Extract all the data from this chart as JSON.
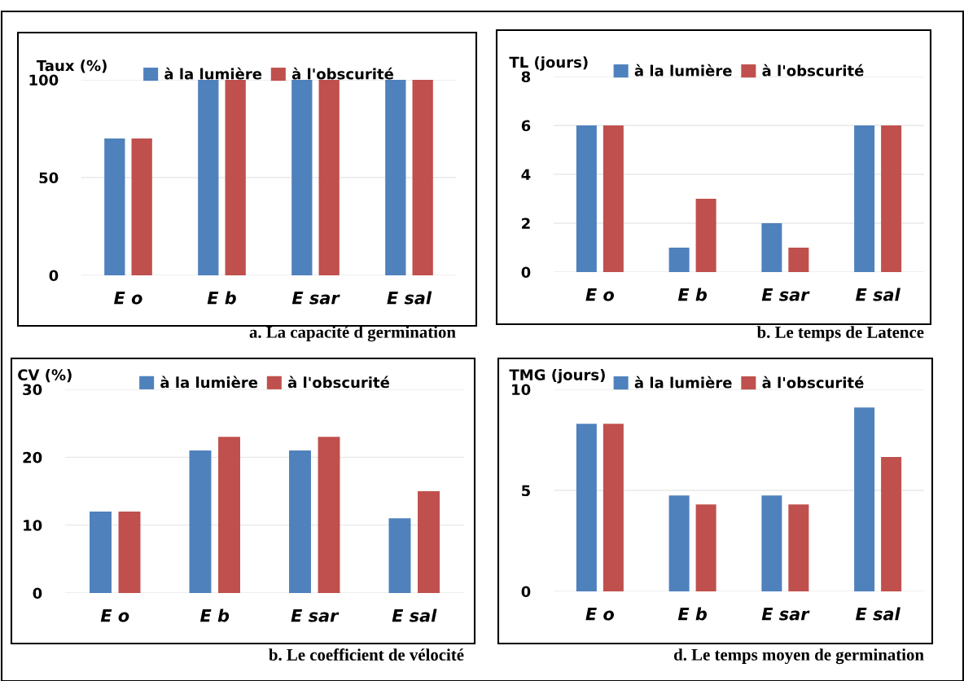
{
  "chart_data": [
    {
      "type": "bar",
      "title": "a. La capacité d germination",
      "ylabel": "Taux (%)",
      "categories": [
        "E o",
        "E b",
        "E sar",
        "E sal"
      ],
      "series": [
        {
          "name": "à la lumière",
          "color": "#4f81bd",
          "values": [
            70,
            100,
            100,
            100
          ]
        },
        {
          "name": "à l'obscurité",
          "color": "#c0504d",
          "values": [
            70,
            100,
            100,
            100
          ]
        }
      ],
      "ylim": [
        0,
        100
      ],
      "yticks": [
        0,
        50,
        100
      ],
      "grid": "y",
      "legend": "top"
    },
    {
      "type": "bar",
      "title": "b. Le temps de Latence",
      "ylabel": "TL (jours)",
      "categories": [
        "E o",
        "E b",
        "E sar",
        "E sal"
      ],
      "series": [
        {
          "name": "à la lumière",
          "color": "#4f81bd",
          "values": [
            6,
            1,
            2,
            6
          ]
        },
        {
          "name": "à l'obscurité",
          "color": "#c0504d",
          "values": [
            6,
            3,
            1,
            6
          ]
        }
      ],
      "ylim": [
        0,
        8
      ],
      "yticks": [
        0,
        2,
        4,
        6,
        8
      ],
      "grid": "y",
      "legend": "top"
    },
    {
      "type": "bar",
      "title": "b. Le coefficient de vélocité",
      "ylabel": "CV (%)",
      "categories": [
        "E o",
        "E b",
        "E sar",
        "E sal"
      ],
      "series": [
        {
          "name": "à la lumière",
          "color": "#4f81bd",
          "values": [
            12,
            21,
            21,
            11
          ]
        },
        {
          "name": "à l'obscurité",
          "color": "#c0504d",
          "values": [
            12,
            23,
            23,
            15
          ]
        }
      ],
      "ylim": [
        0,
        30
      ],
      "yticks": [
        0,
        10,
        20,
        30
      ],
      "grid": "y",
      "legend": "top"
    },
    {
      "type": "bar",
      "title": "d. Le temps moyen de germination",
      "ylabel": "TMG (jours)",
      "categories": [
        "E o",
        "E b",
        "E sar",
        "E sal"
      ],
      "series": [
        {
          "name": "à la lumière",
          "color": "#4f81bd",
          "values": [
            8.3,
            4.75,
            4.75,
            9.1
          ]
        },
        {
          "name": "à l'obscurité",
          "color": "#c0504d",
          "values": [
            8.3,
            4.3,
            4.3,
            6.65
          ]
        }
      ],
      "ylim": [
        0,
        10
      ],
      "yticks": [
        0,
        5,
        10
      ],
      "grid": "y",
      "legend": "top"
    }
  ]
}
